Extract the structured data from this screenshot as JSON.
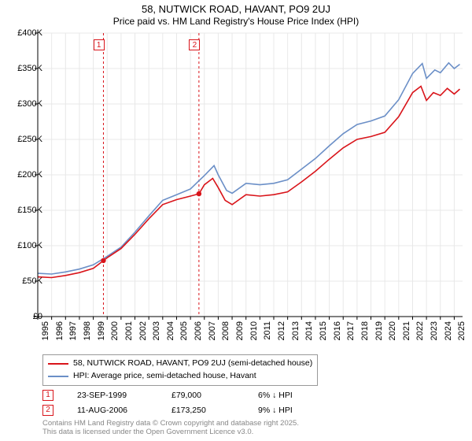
{
  "title_line1": "58, NUTWICK ROAD, HAVANT, PO9 2UJ",
  "title_line2": "Price paid vs. HM Land Registry's House Price Index (HPI)",
  "chart": {
    "type": "line",
    "background_color": "#ffffff",
    "grid_color": "#e8e8e8",
    "axis_color": "#000000",
    "x_years": [
      1995,
      1996,
      1997,
      1998,
      1999,
      2000,
      2001,
      2002,
      2003,
      2004,
      2005,
      2006,
      2007,
      2008,
      2009,
      2010,
      2011,
      2012,
      2013,
      2014,
      2015,
      2016,
      2017,
      2018,
      2019,
      2020,
      2021,
      2022,
      2023,
      2024,
      2025
    ],
    "x_range": [
      1995,
      2025.6
    ],
    "ylim": [
      0,
      400000
    ],
    "ytick_step": 50000,
    "yticks": [
      "£0",
      "£50K",
      "£100K",
      "£150K",
      "£200K",
      "£250K",
      "£300K",
      "£350K",
      "£400K"
    ],
    "tick_fontsize": 11,
    "series": [
      {
        "name": "property",
        "label": "58, NUTWICK ROAD, HAVANT, PO9 2UJ (semi-detached house)",
        "color": "#d9141a",
        "line_width": 1.6,
        "data": [
          [
            1995,
            56000
          ],
          [
            1996,
            55000
          ],
          [
            1997,
            58000
          ],
          [
            1998,
            62000
          ],
          [
            1999,
            68000
          ],
          [
            1999.73,
            79000
          ],
          [
            2000,
            83000
          ],
          [
            2001,
            96000
          ],
          [
            2002,
            116000
          ],
          [
            2003,
            138000
          ],
          [
            2004,
            158000
          ],
          [
            2005,
            165000
          ],
          [
            2006,
            170000
          ],
          [
            2006.61,
            173250
          ],
          [
            2007,
            186000
          ],
          [
            2007.6,
            195000
          ],
          [
            2008,
            182000
          ],
          [
            2008.5,
            164000
          ],
          [
            2009,
            158000
          ],
          [
            2010,
            172000
          ],
          [
            2011,
            170000
          ],
          [
            2012,
            172000
          ],
          [
            2013,
            176000
          ],
          [
            2014,
            190000
          ],
          [
            2015,
            205000
          ],
          [
            2016,
            222000
          ],
          [
            2017,
            238000
          ],
          [
            2018,
            250000
          ],
          [
            2019,
            254000
          ],
          [
            2020,
            260000
          ],
          [
            2021,
            282000
          ],
          [
            2022,
            316000
          ],
          [
            2022.6,
            325000
          ],
          [
            2023,
            305000
          ],
          [
            2023.5,
            316000
          ],
          [
            2024,
            312000
          ],
          [
            2024.5,
            322000
          ],
          [
            2025,
            314000
          ],
          [
            2025.4,
            321000
          ]
        ]
      },
      {
        "name": "hpi",
        "label": "HPI: Average price, semi-detached house, Havant",
        "color": "#6b8fc7",
        "line_width": 1.6,
        "data": [
          [
            1995,
            61000
          ],
          [
            1996,
            60000
          ],
          [
            1997,
            63000
          ],
          [
            1998,
            67000
          ],
          [
            1999,
            73000
          ],
          [
            2000,
            85000
          ],
          [
            2001,
            98000
          ],
          [
            2002,
            119000
          ],
          [
            2003,
            142000
          ],
          [
            2004,
            164000
          ],
          [
            2005,
            172000
          ],
          [
            2006,
            180000
          ],
          [
            2007,
            199000
          ],
          [
            2007.7,
            213000
          ],
          [
            2008,
            200000
          ],
          [
            2008.6,
            178000
          ],
          [
            2009,
            174000
          ],
          [
            2010,
            188000
          ],
          [
            2011,
            186000
          ],
          [
            2012,
            188000
          ],
          [
            2013,
            193000
          ],
          [
            2014,
            208000
          ],
          [
            2015,
            223000
          ],
          [
            2016,
            241000
          ],
          [
            2017,
            258000
          ],
          [
            2018,
            271000
          ],
          [
            2019,
            276000
          ],
          [
            2020,
            283000
          ],
          [
            2021,
            306000
          ],
          [
            2022,
            343000
          ],
          [
            2022.7,
            357000
          ],
          [
            2023,
            336000
          ],
          [
            2023.6,
            348000
          ],
          [
            2024,
            344000
          ],
          [
            2024.6,
            358000
          ],
          [
            2025,
            350000
          ],
          [
            2025.4,
            356000
          ]
        ]
      }
    ],
    "markers": [
      {
        "id": "1",
        "x": 1999.73,
        "y": 79000,
        "label_x": 1999.4,
        "color": "#d9141a",
        "date": "23-SEP-1999",
        "price": "£79,000",
        "delta": "6% ↓ HPI"
      },
      {
        "id": "2",
        "x": 2006.61,
        "y": 173250,
        "label_x": 2006.3,
        "color": "#d9141a",
        "date": "11-AUG-2006",
        "price": "£173,250",
        "delta": "9% ↓ HPI"
      }
    ]
  },
  "legend": {
    "border_color": "#999999",
    "fontsize": 10.5
  },
  "footer_line1": "Contains HM Land Registry data © Crown copyright and database right 2025.",
  "footer_line2": "This data is licensed under the Open Government Licence v3.0.",
  "footer_color": "#888888"
}
